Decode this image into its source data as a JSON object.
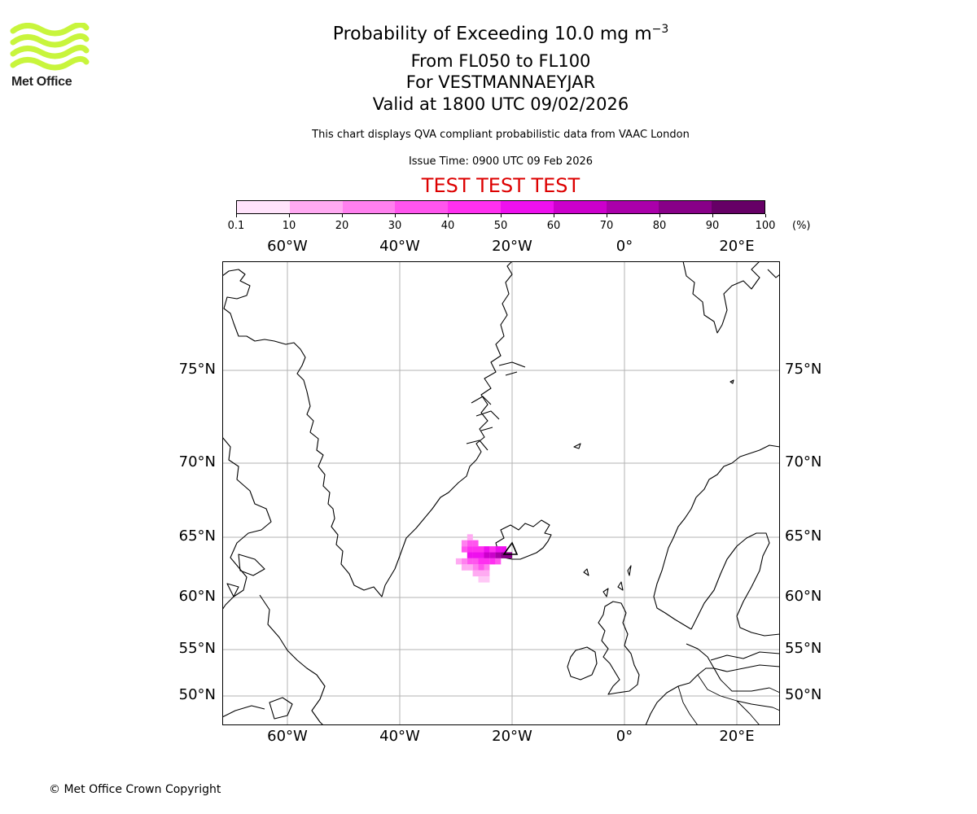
{
  "logo": {
    "name": "Met Office",
    "color": "#c8f53c"
  },
  "title": {
    "line1_prefix": "Probability of Exceeding 10.0 mg m",
    "line1_exponent": "−3",
    "line2": "From FL050 to FL100",
    "line3": "For VESTMANNAEYJAR",
    "line4": "Valid at 1800 UTC 09/02/2026"
  },
  "subtitle": "This chart displays QVA compliant probabilistic data from VAAC London",
  "issue_time": "Issue Time: 0900 UTC 09 Feb 2026",
  "test_label": "TEST TEST TEST",
  "colorbar": {
    "labels": [
      "0.1",
      "10",
      "20",
      "30",
      "40",
      "50",
      "60",
      "70",
      "80",
      "90",
      "100"
    ],
    "unit": "(%)",
    "colors": [
      "#ffe3fb",
      "#ffc8f6",
      "#ffaaf2",
      "#ff80ef",
      "#ff55ee",
      "#ff30f0",
      "#ee10ee",
      "#cc00cc",
      "#aa00aa",
      "#880088",
      "#660066"
    ]
  },
  "map": {
    "lon_labels": [
      "60°W",
      "40°W",
      "20°W",
      "0°",
      "20°E"
    ],
    "lat_labels": [
      "75°N",
      "70°N",
      "65°N",
      "60°N",
      "55°N",
      "50°N"
    ],
    "plume": {
      "source_location": "VESTMANNAEYJAR",
      "cells": [
        {
          "lon": -20.5,
          "lat": 63.5,
          "p": 85
        },
        {
          "lon": -21.5,
          "lat": 63.5,
          "p": 80
        },
        {
          "lon": -22.5,
          "lat": 63.5,
          "p": 72
        },
        {
          "lon": -23.5,
          "lat": 63.5,
          "p": 65
        },
        {
          "lon": -24.5,
          "lat": 63.5,
          "p": 60
        },
        {
          "lon": -25.5,
          "lat": 63.5,
          "p": 58
        },
        {
          "lon": -26.5,
          "lat": 63.5,
          "p": 55
        },
        {
          "lon": -27.5,
          "lat": 63.5,
          "p": 50
        },
        {
          "lon": -21.5,
          "lat": 64.0,
          "p": 55
        },
        {
          "lon": -22.5,
          "lat": 64.0,
          "p": 52
        },
        {
          "lon": -23.5,
          "lat": 64.0,
          "p": 48
        },
        {
          "lon": -24.5,
          "lat": 64.0,
          "p": 50
        },
        {
          "lon": -25.5,
          "lat": 64.0,
          "p": 45
        },
        {
          "lon": -26.5,
          "lat": 64.0,
          "p": 48
        },
        {
          "lon": -27.5,
          "lat": 64.0,
          "p": 42
        },
        {
          "lon": -28.5,
          "lat": 64.0,
          "p": 35
        },
        {
          "lon": -26.5,
          "lat": 64.5,
          "p": 38
        },
        {
          "lon": -27.5,
          "lat": 64.5,
          "p": 30
        },
        {
          "lon": -28.5,
          "lat": 64.5,
          "p": 22
        },
        {
          "lon": -27.5,
          "lat": 65.0,
          "p": 15
        },
        {
          "lon": -22.5,
          "lat": 63.0,
          "p": 35
        },
        {
          "lon": -23.5,
          "lat": 63.0,
          "p": 40
        },
        {
          "lon": -24.5,
          "lat": 63.0,
          "p": 45
        },
        {
          "lon": -25.5,
          "lat": 63.0,
          "p": 42
        },
        {
          "lon": -26.5,
          "lat": 63.0,
          "p": 38
        },
        {
          "lon": -27.5,
          "lat": 63.0,
          "p": 30
        },
        {
          "lon": -28.5,
          "lat": 63.0,
          "p": 20
        },
        {
          "lon": -29.5,
          "lat": 63.0,
          "p": 12
        },
        {
          "lon": -24.5,
          "lat": 62.5,
          "p": 28
        },
        {
          "lon": -25.5,
          "lat": 62.5,
          "p": 30
        },
        {
          "lon": -26.5,
          "lat": 62.5,
          "p": 25
        },
        {
          "lon": -27.5,
          "lat": 62.5,
          "p": 18
        },
        {
          "lon": -28.5,
          "lat": 62.5,
          "p": 10
        },
        {
          "lon": -25.5,
          "lat": 62.0,
          "p": 15
        },
        {
          "lon": -26.5,
          "lat": 62.0,
          "p": 14
        },
        {
          "lon": -24.5,
          "lat": 62.0,
          "p": 10
        },
        {
          "lon": -25.5,
          "lat": 61.5,
          "p": 8
        },
        {
          "lon": -24.5,
          "lat": 61.5,
          "p": 5
        }
      ]
    }
  },
  "copyright": "© Met Office Crown Copyright"
}
